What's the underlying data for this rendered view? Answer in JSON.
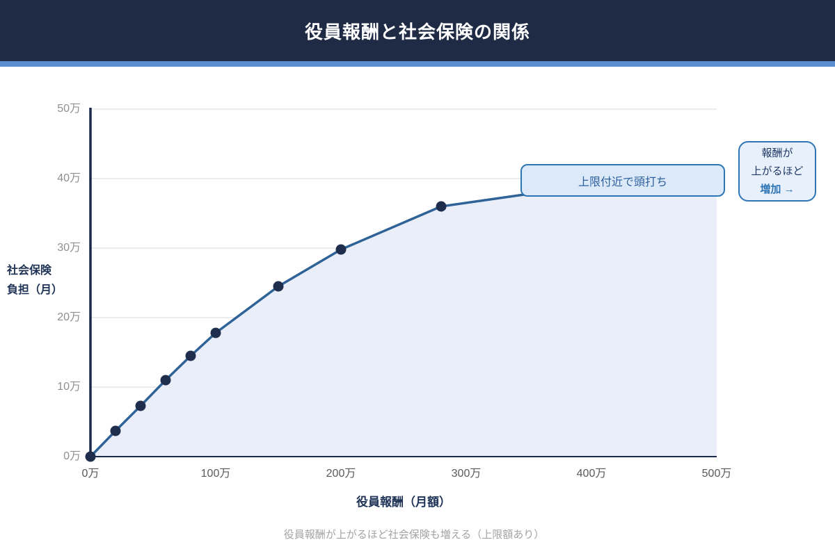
{
  "header": {
    "title": "役員報酬と社会保険の関係"
  },
  "colors": {
    "header_bg": "#1f2a44",
    "accent_strip": "#5b8dd3",
    "line": "#2f6397",
    "marker": "#202e4e",
    "area_fill": "#e9eef9",
    "grid": "#d9d9d9",
    "axis": "#1b2a4a",
    "y_tick_text": "#8f8f8f",
    "x_tick_text": "#595959",
    "axis_title_text": "#1f3356",
    "annotation_border": "#2e75b6",
    "annotation_bg": "#dbe9f8",
    "annotation_text": "#2d5f9e",
    "side_note_bg": "#e8f0fb",
    "side_note_border": "#2e75b6",
    "side_note_text": "#1f3864",
    "side_note_highlight": "#2e75b6",
    "caption_text": "#a3a3a3"
  },
  "chart_data": {
    "type": "area",
    "title": "役員報酬と社会保険の関係",
    "xlabel": "役員報酬（月額）",
    "ylabel_lines": [
      "社会保険",
      "負担（月）"
    ],
    "x": [
      0,
      20,
      40,
      60,
      80,
      100,
      150,
      200,
      280,
      350,
      400,
      500
    ],
    "y": [
      0,
      3.7,
      7.3,
      11,
      14.5,
      17.8,
      24.5,
      29.8,
      36,
      37.8,
      38,
      38
    ],
    "marker_point_count": 9,
    "xlim": [
      0,
      500
    ],
    "ylim": [
      0,
      50
    ],
    "x_tick_values": [
      0,
      100,
      200,
      300,
      400,
      500
    ],
    "x_tick_labels": [
      "0万",
      "100万",
      "200万",
      "300万",
      "400万",
      "500万"
    ],
    "y_tick_values": [
      0,
      10,
      20,
      30,
      40,
      50
    ],
    "y_tick_labels": [
      "0万",
      "10万",
      "20万",
      "30万",
      "40万",
      "50万"
    ],
    "grid": true,
    "legend": "none",
    "annotation": {
      "label": "上限付近で頭打ち"
    },
    "side_note": {
      "lines": [
        "報酬が",
        "上がるほど"
      ],
      "highlight": "増加 →"
    },
    "caption": "役員報酬が上がるほど社会保険も増える（上限額あり）"
  }
}
